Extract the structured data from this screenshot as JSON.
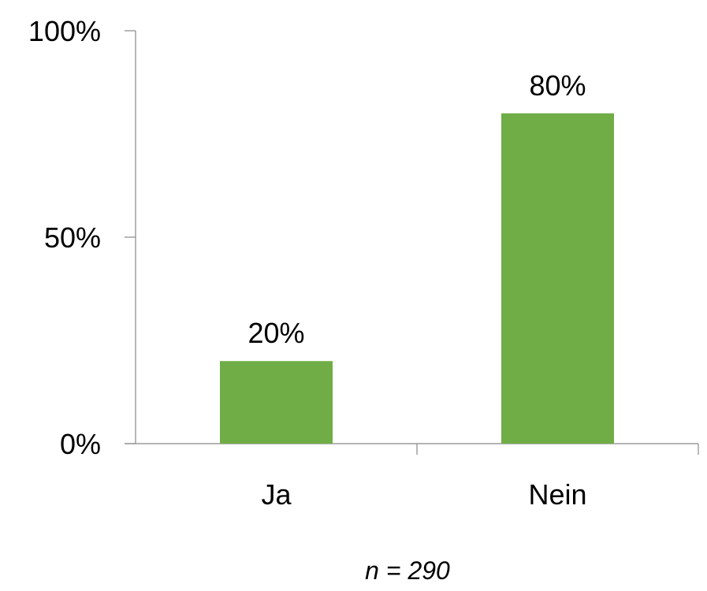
{
  "chart_data": {
    "type": "bar",
    "categories": [
      "Ja",
      "Nein"
    ],
    "values": [
      20,
      80
    ],
    "data_labels": [
      "20%",
      "80%"
    ],
    "y_ticks": [
      0,
      50,
      100
    ],
    "y_tick_labels": [
      "0%",
      "50%",
      "100%"
    ],
    "ylim": [
      0,
      100
    ],
    "y_unit": "%",
    "grid": false,
    "legend": "none",
    "bar_color": "#70AD47",
    "note": "n = 290"
  }
}
